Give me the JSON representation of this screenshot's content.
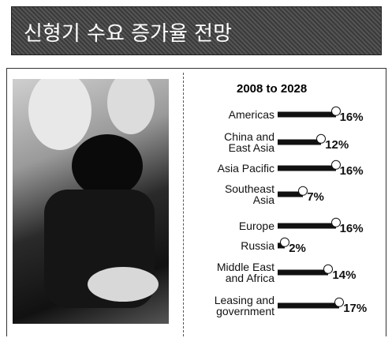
{
  "header": {
    "title": "신형기 수요 증가율 전망"
  },
  "chart_data": {
    "type": "bar",
    "title": "2008 to 2028",
    "categories": [
      "Americas",
      "China and\nEast Asia",
      "Asia Pacific",
      "Southeast\nAsia",
      "Europe",
      "Russia",
      "Middle East\nand Africa",
      "Leasing and\ngovernment"
    ],
    "values": [
      16,
      12,
      16,
      7,
      16,
      2,
      14,
      17
    ],
    "value_labels": [
      "16%",
      "12%",
      "16%",
      "7%",
      "16%",
      "2%",
      "14%",
      "17%"
    ],
    "color": "#111111"
  }
}
